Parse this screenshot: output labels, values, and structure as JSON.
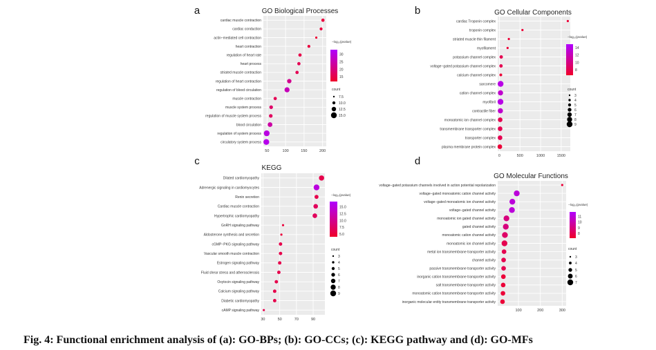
{
  "caption": "Fig. 4: Functional enrichment analysis of (a): GO-BPs; (b): GO-CCs; (c): KEGG pathway and (d): GO-MFs",
  "colors": {
    "low": "#f0002a",
    "high": "#b000ff",
    "panel_bg": "#ebebeb",
    "grid": "#ffffff"
  },
  "chart_data": [
    {
      "type": "scatter",
      "panel_label": "a",
      "title": "GO Biological Processes",
      "xticks": [
        50,
        100,
        150,
        200
      ],
      "xlim": [
        40,
        210
      ],
      "color_legend": {
        "title": "−log₁₀(pvalue)",
        "ticks": [
          30,
          25,
          20,
          15
        ],
        "range": [
          12,
          33
        ]
      },
      "size_legend": {
        "title": "count",
        "ticks": [
          "7.5",
          "10.0",
          "12.5",
          "15.0"
        ]
      },
      "categories": [
        "cardiac muscle contraction",
        "cardiac conduction",
        "actin−mediated cell contraction",
        "heart contraction",
        "regulation of heart rate",
        "heart process",
        "striated muscle contraction",
        "regulation of heart contraction",
        "regulation of blood circulation",
        "muscle contraction",
        "muscle system process",
        "regulation of muscle system process",
        "blood circulation",
        "regulation of system process",
        "circulatory system process"
      ],
      "x": [
        201,
        196,
        183,
        163,
        139,
        136,
        131,
        110,
        104,
        72,
        61,
        60,
        58,
        49,
        48
      ],
      "color_values": [
        14,
        14,
        13,
        14,
        15,
        16,
        16,
        22,
        26,
        16,
        18,
        17,
        24,
        30,
        31
      ],
      "count": [
        8,
        7,
        5,
        7,
        8,
        8,
        8,
        11,
        13,
        8,
        9,
        9,
        12,
        15,
        15
      ]
    },
    {
      "type": "scatter",
      "panel_label": "b",
      "title": "GO Cellular Components",
      "xticks": [
        0,
        500,
        1000,
        1500
      ],
      "xlim": [
        -40,
        1720
      ],
      "color_legend": {
        "title": "−log₁₀(pvalue)",
        "ticks": [
          14,
          12,
          10,
          8
        ],
        "range": [
          6.5,
          15
        ]
      },
      "size_legend": {
        "title": "count",
        "ticks": [
          "3",
          "4",
          "5",
          "6",
          "7",
          "8",
          "9"
        ]
      },
      "categories": [
        "cardiac Troponin complex",
        "troponin complex",
        "striated muscle thin filament",
        "myofilament",
        "potassium channel complex",
        "voltage−gated potassium channel complex",
        "calcium channel complex",
        "sarcomere",
        "cation channel complex",
        "myofibril",
        "contractile fiber",
        "monoatomic ion channel complex",
        "transmembrane transporter complex",
        "transporter complex",
        "plasma membrane protein complex"
      ],
      "x": [
        1660,
        560,
        230,
        200,
        45,
        40,
        35,
        30,
        28,
        27,
        25,
        20,
        18,
        17,
        12
      ],
      "color_values": [
        7,
        7,
        7,
        7,
        8,
        8,
        7,
        14,
        13,
        14,
        13,
        8,
        8,
        8,
        7
      ],
      "count": [
        3,
        3,
        3,
        3,
        5,
        5,
        4,
        9,
        8,
        9,
        8,
        7,
        7,
        7,
        7
      ]
    },
    {
      "type": "scatter",
      "panel_label": "c",
      "title": "KEGG",
      "xticks": [
        30,
        50,
        70,
        90
      ],
      "xlim": [
        28,
        104
      ],
      "color_legend": {
        "title": "−log₁₀(pvalue)",
        "ticks": [
          "15.0",
          "12.5",
          "10.0",
          "7.5",
          "5.0"
        ],
        "range": [
          4,
          17
        ]
      },
      "size_legend": {
        "title": "count",
        "ticks": [
          "3",
          "4",
          "5",
          "6",
          "7",
          "8",
          "9"
        ]
      },
      "categories": [
        "Dilated cardiomyopathy",
        "Adrenergic signaling in cardiomyocytes",
        "Renin secretion",
        "Cardiac muscle contraction",
        "Hypertrophic cardiomyopathy",
        "GnRH signaling pathway",
        "Aldosterone synthesis and secretion",
        "cGMP−PKG signaling pathway",
        "Vascular smooth muscle contraction",
        "Estrogen signaling pathway",
        "Fluid shear stress and atherosclerosis",
        "Oxytocin signaling pathway",
        "Calcium signaling pathway",
        "Diabetic cardiomyopathy",
        "cAMP signaling pathway"
      ],
      "x": [
        100,
        94,
        94,
        93,
        92,
        54,
        52,
        51,
        51,
        50,
        49,
        46,
        44,
        44,
        31
      ],
      "color_values": [
        6,
        15,
        6,
        7,
        7,
        5,
        5,
        6,
        6,
        6,
        6,
        6,
        6,
        6,
        6
      ],
      "count": [
        8,
        9,
        6,
        7,
        7,
        3,
        3,
        5,
        5,
        5,
        5,
        5,
        5,
        5,
        3
      ]
    },
    {
      "type": "scatter",
      "panel_label": "d",
      "title": "GO Molecular Functions",
      "xticks": [
        100,
        200,
        300
      ],
      "xlim": [
        5,
        318
      ],
      "color_legend": {
        "title": "−log₁₀(pvalue)",
        "ticks": [
          11,
          10,
          9,
          8
        ],
        "range": [
          7.2,
          11.8
        ]
      },
      "size_legend": {
        "title": "count",
        "ticks": [
          "3",
          "4",
          "5",
          "6",
          "7"
        ]
      },
      "categories": [
        "voltage−gated potassium channels involved in action potential repolarization",
        "voltage−gated monoatomic cation channel activity",
        "voltage−gated monoatomic ion channel activity",
        "voltage−gated channel activity",
        "monoatomic ion gated channel activity",
        "gated channel activity",
        "monoatomic cation channel activity",
        "monoatomic ion channel activity",
        "metal ion transmembrane transporter activity",
        "channel activity",
        "passive transmembrane transporter activity",
        "inorganic cation transmembrane transporter activity",
        "salt transmembrane transporter activity",
        "monoatomic cation transmembrane transporter activity",
        "inorganic molecular entity transmembrane transporter activity"
      ],
      "x": [
        300,
        92,
        72,
        70,
        45,
        42,
        38,
        36,
        34,
        32,
        32,
        31,
        30,
        29,
        27
      ],
      "color_values": [
        7.5,
        11,
        11,
        11,
        9,
        9,
        8.5,
        8,
        8,
        8,
        8,
        7.5,
        7.5,
        7.5,
        7.5
      ],
      "count": [
        3,
        6,
        6,
        6,
        6,
        6,
        6,
        6,
        5,
        5,
        5,
        5,
        5,
        5,
        5
      ]
    }
  ]
}
